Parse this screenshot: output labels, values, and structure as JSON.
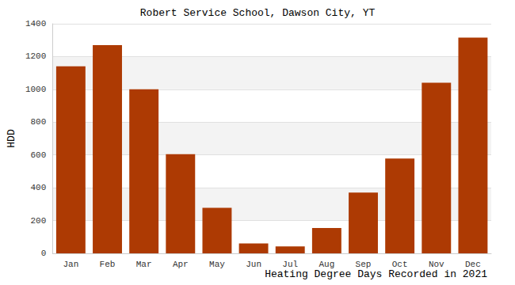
{
  "chart_data": {
    "type": "bar",
    "title": "Robert Service School, Dawson City, YT",
    "x_label": "Heating Degree Days Recorded in 2021",
    "y_label": "HDD",
    "categories": [
      "Jan",
      "Feb",
      "Mar",
      "Apr",
      "May",
      "Jun",
      "Jul",
      "Aug",
      "Sep",
      "Oct",
      "Nov",
      "Dec"
    ],
    "values": [
      1140,
      1270,
      1000,
      605,
      278,
      60,
      42,
      155,
      370,
      578,
      1040,
      1315
    ],
    "color": "#ad3a03",
    "ylim": [
      0,
      1400
    ],
    "yticks": [
      0,
      200,
      400,
      600,
      800,
      1000,
      1200,
      1400
    ],
    "grid": true
  }
}
